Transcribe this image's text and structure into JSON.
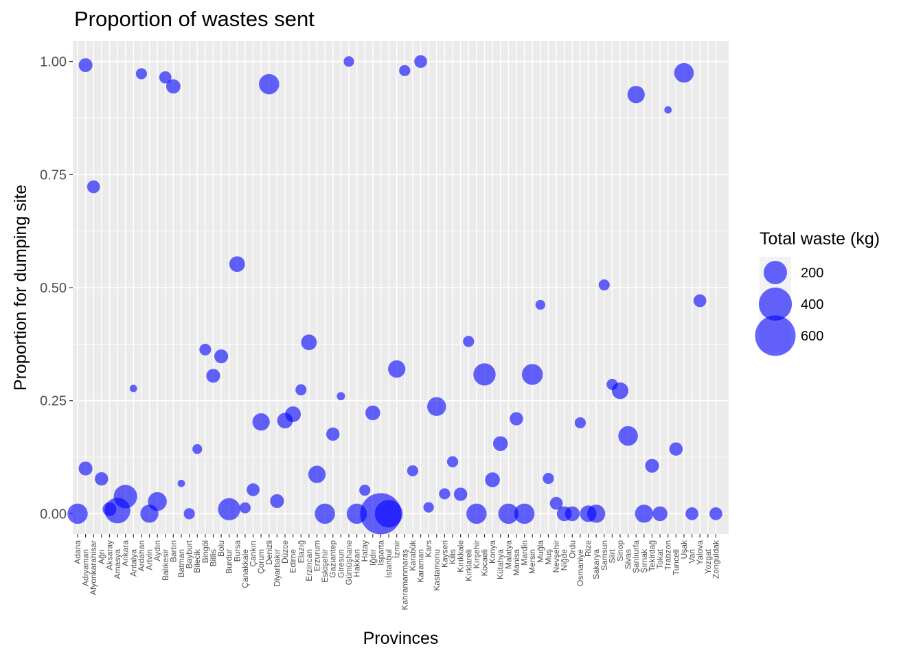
{
  "chart_data": {
    "type": "scatter",
    "title": "Proportion of wastes sent",
    "xlabel": "Provinces",
    "ylabel": "Proportion for dumping site",
    "ylim": [
      -0.045,
      1.045
    ],
    "y_ticks": [
      "0.00",
      "0.25",
      "0.50",
      "0.75",
      "1.00"
    ],
    "y_tick_values": [
      0,
      0.25,
      0.5,
      0.75,
      1.0
    ],
    "grid": true,
    "point_color": "#0000ff",
    "point_opacity": 0.6,
    "panel_background": "#ebebeb",
    "legend": {
      "title": "Total waste (kg)",
      "position": "right",
      "entries": [
        {
          "label": "200",
          "size": 200
        },
        {
          "label": "400",
          "size": 400
        },
        {
          "label": "600",
          "size": 600
        }
      ]
    },
    "categories": [
      "Adana",
      "Adıyaman",
      "Afyonkarahisar",
      "Ağrı",
      "Aksaray",
      "Amasya",
      "Ankara",
      "Antalya",
      "Ardahan",
      "Artvin",
      "Aydın",
      "Balıkesir",
      "Bartın",
      "Batman",
      "Bayburt",
      "Bilecik",
      "Bingöl",
      "Bitlis",
      "Bolu",
      "Burdur",
      "Bursa",
      "Çanakkale",
      "Çankırı",
      "Çorum",
      "Denizli",
      "Diyarbakır",
      "Düzce",
      "Edirne",
      "Elazığ",
      "Erzincan",
      "Erzurum",
      "Eskişehir",
      "Gaziantep",
      "Giresun",
      "Gümüşhane",
      "Hakkari",
      "Hatay",
      "Iğdır",
      "Isparta",
      "İstanbul",
      "İzmir",
      "Kahramanmaraş",
      "Karabük",
      "Karaman",
      "Kars",
      "Kastamonu",
      "Kayseri",
      "Kilis",
      "Kırıkkale",
      "Kırklareli",
      "Kırşehir",
      "Kocaeli",
      "Konya",
      "Kütahya",
      "Malatya",
      "Manisa",
      "Mardin",
      "Mersin",
      "Muğla",
      "Muş",
      "Nevşehir",
      "Niğde",
      "Ordu",
      "Osmaniye",
      "Rize",
      "Sakarya",
      "Samsun",
      "Siirt",
      "Sinop",
      "Sivas",
      "Şanlıurfa",
      "Şırnak",
      "Tekirdağ",
      "Tokat",
      "Trabzon",
      "Tunceli",
      "Uşak",
      "Van",
      "Yalova",
      "Yozgat",
      "Zonguldak"
    ],
    "x_tick_labels_rows": [
      [
        "Adana",
        "Afyonkarahisar",
        "Aksaray",
        "Ankara",
        "Ardahan",
        "Aydın",
        "Bartın",
        "Bayburt",
        "Bingöl",
        "Bolu",
        "Bursa",
        "Çankırı",
        "Denizli",
        "Düzce",
        "Elazığ",
        "Erzurum",
        "Gaziantep",
        "Gümüşhane",
        "Hatay",
        "Isparta",
        "İzmir",
        "Karabük",
        "Kars",
        "Kayseri",
        "Kırıkkale",
        "Kırşehir",
        "Konya",
        "Malatya",
        "Mardin",
        "Muğla",
        "Nevşehir",
        "Ordu",
        "Rize",
        "Samsun",
        "Sinop",
        "Şanlıurfa",
        "Tekirdağ",
        "Trabzon",
        "Uşak",
        "Yalova",
        "Zonguldak"
      ],
      [
        "Adıyaman",
        "Ağrı",
        "Amasya",
        "Antalya",
        "Artvin",
        "Balıkesir",
        "Batman",
        "Bilecik",
        "Bitlis",
        "Burdur",
        "Çanakkale",
        "Çorum",
        "Diyarbakır",
        "Edirne",
        "Erzincan",
        "Eskişehir",
        "Giresun",
        "Hakkari",
        "Iğdır",
        "İstanbul",
        "Kahramanmaraş",
        "Karaman",
        "Kastamonu",
        "Kilis",
        "Kırklareli",
        "Kocaeli",
        "Kütahya",
        "Manisa",
        "Mersin",
        "Muş",
        "Niğde",
        "Osmaniye",
        "Sakarya",
        "Siirt",
        "Sivas",
        "Şırnak",
        "Tokat",
        "Tunceli",
        "Van",
        "Yozgat"
      ]
    ],
    "points": [
      {
        "x": "Adana",
        "y": 0.0,
        "size": 150
      },
      {
        "x": "Adıyaman",
        "y": 0.992,
        "size": 70
      },
      {
        "x": "Adıyaman",
        "y": 0.1,
        "size": 70
      },
      {
        "x": "Afyonkarahisar",
        "y": 0.723,
        "size": 60
      },
      {
        "x": "Ağrı",
        "y": 0.077,
        "size": 65
      },
      {
        "x": "Aksaray",
        "y": 0.01,
        "size": 70
      },
      {
        "x": "Amasya",
        "y": 0.007,
        "size": 240
      },
      {
        "x": "Ankara",
        "y": 0.038,
        "size": 200
      },
      {
        "x": "Antalya",
        "y": 0.277,
        "size": 20
      },
      {
        "x": "Ardahan",
        "y": 0.973,
        "size": 45
      },
      {
        "x": "Artvin",
        "y": 0.0,
        "size": 120
      },
      {
        "x": "Aydın",
        "y": 0.027,
        "size": 130
      },
      {
        "x": "Balıkesir",
        "y": 0.965,
        "size": 55
      },
      {
        "x": "Bartın",
        "y": 0.945,
        "size": 75
      },
      {
        "x": "Batman",
        "y": 0.067,
        "size": 20
      },
      {
        "x": "Bayburt",
        "y": 0.0,
        "size": 45
      },
      {
        "x": "Bilecik",
        "y": 0.143,
        "size": 35
      },
      {
        "x": "Bingöl",
        "y": 0.363,
        "size": 50
      },
      {
        "x": "Bitlis",
        "y": 0.305,
        "size": 70
      },
      {
        "x": "Bolu",
        "y": 0.348,
        "size": 70
      },
      {
        "x": "Burdur",
        "y": 0.01,
        "size": 180
      },
      {
        "x": "Bursa",
        "y": 0.552,
        "size": 90
      },
      {
        "x": "Çanakkale",
        "y": 0.013,
        "size": 45
      },
      {
        "x": "Çankırı",
        "y": 0.053,
        "size": 60
      },
      {
        "x": "Çorum",
        "y": 0.203,
        "size": 110
      },
      {
        "x": "Denizli",
        "y": 0.95,
        "size": 150
      },
      {
        "x": "Diyarbakır",
        "y": 0.028,
        "size": 70
      },
      {
        "x": "Düzce",
        "y": 0.206,
        "size": 90
      },
      {
        "x": "Edirne",
        "y": 0.22,
        "size": 90
      },
      {
        "x": "Elazığ",
        "y": 0.274,
        "size": 45
      },
      {
        "x": "Erzincan",
        "y": 0.379,
        "size": 90
      },
      {
        "x": "Erzurum",
        "y": 0.087,
        "size": 110
      },
      {
        "x": "Eskişehir",
        "y": 0.0,
        "size": 150
      },
      {
        "x": "Gaziantep",
        "y": 0.176,
        "size": 65
      },
      {
        "x": "Giresun",
        "y": 0.26,
        "size": 25
      },
      {
        "x": "Gümüşhane",
        "y": 1.0,
        "size": 40
      },
      {
        "x": "Hakkari",
        "y": 0.0,
        "size": 150
      },
      {
        "x": "Hatay",
        "y": 0.052,
        "size": 45
      },
      {
        "x": "Iğdır",
        "y": 0.223,
        "size": 80
      },
      {
        "x": "Isparta",
        "y": 0.0,
        "size": 620
      },
      {
        "x": "İstanbul",
        "y": 0.0,
        "size": 280
      },
      {
        "x": "İzmir",
        "y": 0.32,
        "size": 110
      },
      {
        "x": "Kahramanmaraş",
        "y": 0.98,
        "size": 45
      },
      {
        "x": "Karabük",
        "y": 0.095,
        "size": 45
      },
      {
        "x": "Karaman",
        "y": 1.0,
        "size": 60
      },
      {
        "x": "Kars",
        "y": 0.014,
        "size": 40
      },
      {
        "x": "Kastamonu",
        "y": 0.237,
        "size": 130
      },
      {
        "x": "Kayseri",
        "y": 0.044,
        "size": 45
      },
      {
        "x": "Kilis",
        "y": 0.115,
        "size": 45
      },
      {
        "x": "Kırıkkale",
        "y": 0.043,
        "size": 65
      },
      {
        "x": "Kırklareli",
        "y": 0.381,
        "size": 45
      },
      {
        "x": "Kırşehir",
        "y": 0.0,
        "size": 150
      },
      {
        "x": "Kocaeli",
        "y": 0.308,
        "size": 180
      },
      {
        "x": "Konya",
        "y": 0.075,
        "size": 80
      },
      {
        "x": "Kütahya",
        "y": 0.155,
        "size": 80
      },
      {
        "x": "Malatya",
        "y": 0.0,
        "size": 150
      },
      {
        "x": "Manisa",
        "y": 0.21,
        "size": 65
      },
      {
        "x": "Mardin",
        "y": 0.0,
        "size": 150
      },
      {
        "x": "Mersin",
        "y": 0.308,
        "size": 160
      },
      {
        "x": "Muğla",
        "y": 0.462,
        "size": 35
      },
      {
        "x": "Muş",
        "y": 0.078,
        "size": 45
      },
      {
        "x": "Nevşehir",
        "y": 0.023,
        "size": 60
      },
      {
        "x": "Niğde",
        "y": 0.0,
        "size": 80
      },
      {
        "x": "Ordu",
        "y": 0.0,
        "size": 80
      },
      {
        "x": "Osmaniye",
        "y": 0.201,
        "size": 45
      },
      {
        "x": "Rize",
        "y": 0.0,
        "size": 100
      },
      {
        "x": "Sakarya",
        "y": 0.0,
        "size": 120
      },
      {
        "x": "Samsun",
        "y": 0.506,
        "size": 45
      },
      {
        "x": "Siirt",
        "y": 0.286,
        "size": 45
      },
      {
        "x": "Sinop",
        "y": 0.272,
        "size": 100
      },
      {
        "x": "Sivas",
        "y": 0.172,
        "size": 140
      },
      {
        "x": "Şanlıurfa",
        "y": 0.927,
        "size": 110
      },
      {
        "x": "Şırnak",
        "y": 0.0,
        "size": 120
      },
      {
        "x": "Tekirdağ",
        "y": 0.106,
        "size": 70
      },
      {
        "x": "Tokat",
        "y": 0.0,
        "size": 80
      },
      {
        "x": "Trabzon",
        "y": 0.893,
        "size": 20
      },
      {
        "x": "Tunceli",
        "y": 0.143,
        "size": 65
      },
      {
        "x": "Uşak",
        "y": 0.975,
        "size": 140
      },
      {
        "x": "Van",
        "y": 0.0,
        "size": 60
      },
      {
        "x": "Yalova",
        "y": 0.471,
        "size": 60
      },
      {
        "x": "Zonguldak",
        "y": 0.0,
        "size": 60
      }
    ]
  }
}
